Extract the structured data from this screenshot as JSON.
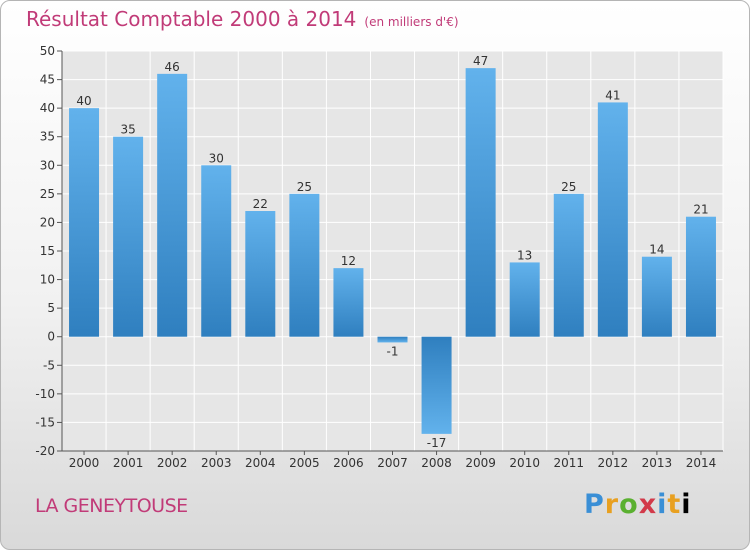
{
  "title": "Résultat Comptable 2000 à 2014",
  "unit": "(en milliers d'€)",
  "commune": "LA GENEYTOUSE",
  "logo": "Proxiti",
  "colors": {
    "accent": "#c13b78",
    "bar_light": "#62b2ec",
    "bar_dark": "#2f7fbf"
  },
  "chart_data": {
    "type": "bar",
    "title": "Résultat Comptable 2000 à 2014",
    "subtitle": "(en milliers d'€)",
    "xlabel": "",
    "ylabel": "",
    "categories": [
      "2000",
      "2001",
      "2002",
      "2003",
      "2004",
      "2005",
      "2006",
      "2007",
      "2008",
      "2009",
      "2010",
      "2011",
      "2012",
      "2013",
      "2014"
    ],
    "values": [
      40,
      35,
      46,
      30,
      22,
      25,
      12,
      -1,
      -17,
      47,
      13,
      25,
      41,
      14,
      21
    ],
    "ylim": [
      -20,
      50
    ],
    "yticks": [
      -20,
      -15,
      -10,
      -5,
      0,
      5,
      10,
      15,
      20,
      25,
      30,
      35,
      40,
      45,
      50
    ],
    "grid": true
  }
}
